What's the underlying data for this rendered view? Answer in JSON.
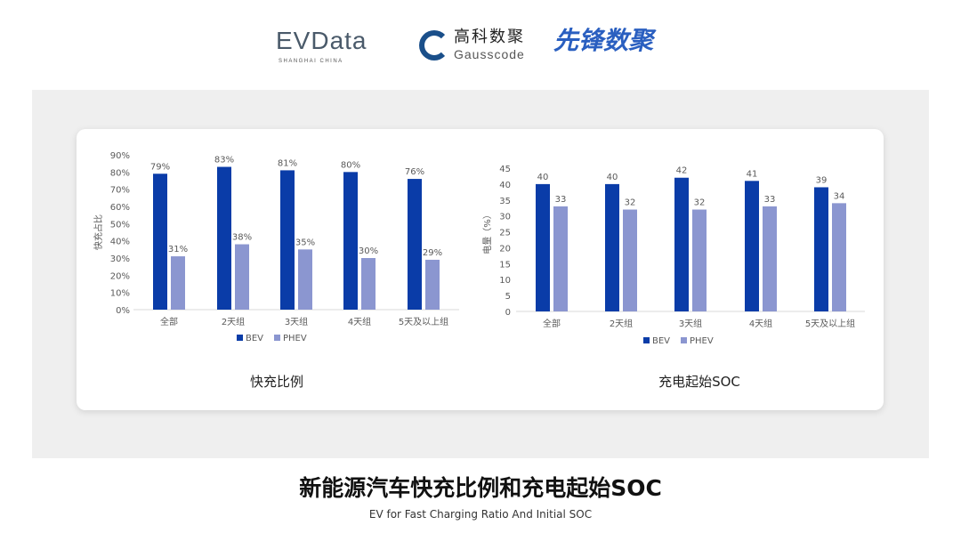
{
  "logos": {
    "evdata": "EVData",
    "evdata_sub": "SHANGHAI CHINA",
    "gauss_cn": "高科数聚",
    "gauss_en": "Gausscode",
    "xianfeng": "先锋数聚"
  },
  "colors": {
    "BEV": "#0a3ca8",
    "PHEV": "#8b96d0",
    "panel": "#efefef"
  },
  "chart_data": [
    {
      "type": "bar",
      "title": "快充比例",
      "ylabel": "快充占比",
      "ylim": [
        0,
        90
      ],
      "yticks": [
        0,
        10,
        20,
        30,
        40,
        50,
        60,
        70,
        80,
        90
      ],
      "ytick_suffix": "%",
      "categories": [
        "全部",
        "2天组",
        "3天组",
        "4天组",
        "5天及以上组"
      ],
      "series": [
        {
          "name": "BEV",
          "values": [
            79,
            83,
            81,
            80,
            76
          ]
        },
        {
          "name": "PHEV",
          "values": [
            31,
            38,
            35,
            30,
            29
          ]
        }
      ],
      "legend": "bottom",
      "grid": false
    },
    {
      "type": "bar",
      "title": "充电起始SOC",
      "ylabel": "电量（%）",
      "ylim": [
        0,
        45
      ],
      "yticks": [
        0,
        5,
        10,
        15,
        20,
        25,
        30,
        35,
        40,
        45
      ],
      "ytick_suffix": "",
      "categories": [
        "全部",
        "2天组",
        "3天组",
        "4天组",
        "5天及以上组"
      ],
      "series": [
        {
          "name": "BEV",
          "values": [
            40,
            40,
            42,
            41,
            39
          ]
        },
        {
          "name": "PHEV",
          "values": [
            33,
            32,
            32,
            33,
            34
          ]
        }
      ],
      "legend": "bottom",
      "grid": false
    }
  ],
  "footer": {
    "title_cn": "新能源汽车快充比例和充电起始SOC",
    "title_en": "EV for Fast Charging Ratio And Initial SOC"
  }
}
